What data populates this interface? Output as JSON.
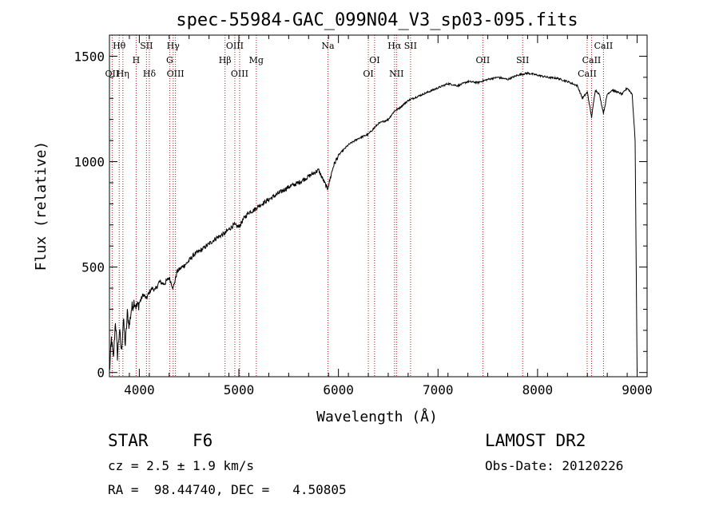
{
  "chart_data": {
    "type": "line",
    "title": "spec-55984-GAC_099N04_V3_sp03-095.fits",
    "xlabel": "Wavelength (Å)",
    "ylabel": "Flux (relative)",
    "xlim": [
      3700,
      9100
    ],
    "ylim": [
      -20,
      1600
    ],
    "xticks": [
      "4000",
      "5000",
      "6000",
      "7000",
      "8000",
      "9000"
    ],
    "yticks": [
      "0",
      "500",
      "1000",
      "1500"
    ],
    "grid": false,
    "series": [
      {
        "x": [
          3700,
          3720,
          3740,
          3760,
          3780,
          3800,
          3820,
          3840,
          3860,
          3880,
          3900,
          3920,
          3950,
          3970,
          3990,
          4010,
          4040,
          4070,
          4100,
          4130,
          4160,
          4200,
          4250,
          4300,
          4340,
          4380,
          4430,
          4480,
          4550,
          4620,
          4700,
          4780,
          4861,
          4900,
          4950,
          5000,
          5050,
          5100,
          5150,
          5200,
          5300,
          5400,
          5500,
          5600,
          5700,
          5800,
          5890,
          5950,
          6000,
          6100,
          6200,
          6300,
          6400,
          6500,
          6562,
          6600,
          6650,
          6700,
          6750,
          6800,
          6900,
          7000,
          7100,
          7200,
          7300,
          7400,
          7500,
          7600,
          7700,
          7800,
          7900,
          8000,
          8100,
          8200,
          8300,
          8400,
          8450,
          8500,
          8542,
          8580,
          8620,
          8662,
          8700,
          8750,
          8800,
          8850,
          8900,
          8950,
          8980,
          9000
        ],
        "y": [
          0,
          160,
          60,
          250,
          80,
          200,
          100,
          250,
          130,
          280,
          220,
          300,
          340,
          310,
          320,
          340,
          370,
          350,
          380,
          400,
          390,
          430,
          420,
          450,
          400,
          480,
          500,
          520,
          560,
          580,
          610,
          640,
          660,
          680,
          700,
          690,
          730,
          760,
          770,
          790,
          820,
          850,
          880,
          900,
          930,
          960,
          870,
          980,
          1030,
          1080,
          1110,
          1130,
          1180,
          1200,
          1240,
          1250,
          1270,
          1290,
          1300,
          1310,
          1330,
          1350,
          1370,
          1360,
          1380,
          1375,
          1390,
          1400,
          1390,
          1410,
          1420,
          1410,
          1400,
          1395,
          1380,
          1360,
          1300,
          1330,
          1210,
          1340,
          1320,
          1230,
          1320,
          1340,
          1330,
          1320,
          1350,
          1320,
          1100,
          0
        ]
      }
    ],
    "lines": [
      {
        "name": "Hθ",
        "x": 3798,
        "row": 1
      },
      {
        "name": "OII",
        "x": 3727,
        "row": 3
      },
      {
        "name": "Hη",
        "x": 3835,
        "row": 3
      },
      {
        "name": "SII",
        "x": 4072,
        "row": 1
      },
      {
        "name": "H",
        "x": 3968,
        "row": 2
      },
      {
        "name": "Hδ",
        "x": 4101,
        "row": 3
      },
      {
        "name": "Hγ",
        "x": 4340,
        "row": 1
      },
      {
        "name": "G",
        "x": 4305,
        "row": 2
      },
      {
        "name": "OIII",
        "x": 4363,
        "row": 3
      },
      {
        "name": "OIII",
        "x": 4959,
        "row": 1
      },
      {
        "name": "Hβ",
        "x": 4861,
        "row": 2
      },
      {
        "name": "OIII",
        "x": 5007,
        "row": 3
      },
      {
        "name": "Mg",
        "x": 5175,
        "row": 2
      },
      {
        "name": "Na",
        "x": 5894,
        "row": 1
      },
      {
        "name": "OI",
        "x": 6363,
        "row": 2
      },
      {
        "name": "OI",
        "x": 6300,
        "row": 3
      },
      {
        "name": "Hα",
        "x": 6563,
        "row": 1
      },
      {
        "name": "SII",
        "x": 6724,
        "row": 1
      },
      {
        "name": "NII",
        "x": 6583,
        "row": 3
      },
      {
        "name": "OII",
        "x": 7450,
        "row": 2
      },
      {
        "name": "SII",
        "x": 7850,
        "row": 2
      },
      {
        "name": "CaII",
        "x": 8662,
        "row": 1
      },
      {
        "name": "CaII",
        "x": 8542,
        "row": 2
      },
      {
        "name": "CaII",
        "x": 8498,
        "row": 3
      }
    ]
  },
  "info": {
    "object_class": "STAR",
    "subclass": "F6",
    "survey": "LAMOST DR2",
    "cz": "cz = 2.5 ± 1.9 km/s",
    "obs_date": "Obs-Date: 20120226",
    "radec": "RA =  98.44740, DEC =   4.50805"
  },
  "colors": {
    "spectrum": "#000000",
    "line_markers": "#b01818",
    "axes": "#000000"
  }
}
